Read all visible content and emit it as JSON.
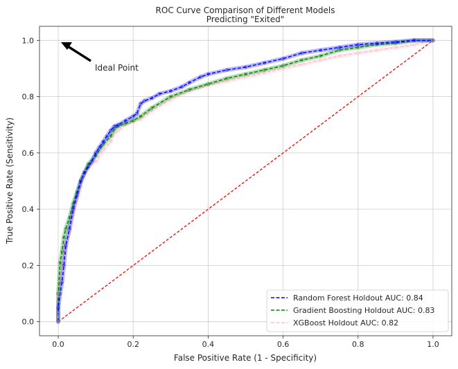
{
  "chart_data": {
    "type": "line",
    "title": "ROC Curve Comparison of Different Models",
    "subtitle": "Predicting \"Exited\"",
    "xlabel": "False Positive Rate (1 - Specificity)",
    "ylabel": "True Positive Rate (Sensitivity)",
    "xlim": [
      -0.05,
      1.05
    ],
    "ylim": [
      -0.05,
      1.05
    ],
    "xticks": [
      0.0,
      0.2,
      0.4,
      0.6,
      0.8,
      1.0
    ],
    "yticks": [
      0.0,
      0.2,
      0.4,
      0.6,
      0.8,
      1.0
    ],
    "xtick_labels": [
      "0.0",
      "0.2",
      "0.4",
      "0.6",
      "0.8",
      "1.0"
    ],
    "ytick_labels": [
      "0.0",
      "0.2",
      "0.4",
      "0.6",
      "0.8",
      "1.0"
    ],
    "grid": true,
    "legend_position": "lower-right",
    "annotation": {
      "text": "Ideal Point",
      "point": [
        0.0,
        1.0
      ],
      "text_at": [
        0.1,
        0.9
      ]
    },
    "baseline": {
      "x": [
        0,
        1
      ],
      "y": [
        0,
        1
      ],
      "color": "#ff0000"
    },
    "series": [
      {
        "name": "Random Forest Holdout AUC: 0.84",
        "color": "#0000ff",
        "x": [
          0.0,
          0.0,
          0.005,
          0.01,
          0.015,
          0.02,
          0.03,
          0.04,
          0.05,
          0.06,
          0.07,
          0.08,
          0.09,
          0.1,
          0.11,
          0.12,
          0.13,
          0.14,
          0.15,
          0.16,
          0.18,
          0.2,
          0.21,
          0.22,
          0.23,
          0.25,
          0.27,
          0.3,
          0.33,
          0.35,
          0.38,
          0.4,
          0.45,
          0.5,
          0.55,
          0.6,
          0.65,
          0.7,
          0.75,
          0.8,
          0.85,
          0.9,
          0.95,
          1.0
        ],
        "y": [
          0.0,
          0.05,
          0.1,
          0.14,
          0.2,
          0.27,
          0.33,
          0.4,
          0.45,
          0.5,
          0.53,
          0.55,
          0.57,
          0.6,
          0.62,
          0.64,
          0.66,
          0.68,
          0.695,
          0.7,
          0.715,
          0.73,
          0.74,
          0.775,
          0.785,
          0.795,
          0.81,
          0.82,
          0.835,
          0.85,
          0.87,
          0.88,
          0.895,
          0.905,
          0.92,
          0.935,
          0.955,
          0.965,
          0.975,
          0.985,
          0.99,
          0.995,
          1.0,
          1.0
        ]
      },
      {
        "name": "Gradient Boosting Holdout AUC: 0.83",
        "color": "#008000",
        "x": [
          0.0,
          0.0,
          0.005,
          0.01,
          0.015,
          0.02,
          0.03,
          0.04,
          0.05,
          0.06,
          0.07,
          0.08,
          0.1,
          0.12,
          0.14,
          0.15,
          0.16,
          0.18,
          0.2,
          0.22,
          0.25,
          0.3,
          0.35,
          0.4,
          0.45,
          0.5,
          0.55,
          0.6,
          0.65,
          0.7,
          0.75,
          0.8,
          0.85,
          0.9,
          0.95,
          1.0
        ],
        "y": [
          0.0,
          0.1,
          0.21,
          0.25,
          0.3,
          0.33,
          0.37,
          0.42,
          0.46,
          0.5,
          0.53,
          0.56,
          0.59,
          0.63,
          0.66,
          0.685,
          0.695,
          0.705,
          0.715,
          0.73,
          0.76,
          0.8,
          0.825,
          0.845,
          0.865,
          0.88,
          0.895,
          0.91,
          0.93,
          0.945,
          0.965,
          0.975,
          0.985,
          0.99,
          1.0,
          1.0
        ]
      },
      {
        "name": "XGBoost Holdout AUC: 0.82",
        "color": "#ffc0cb",
        "x": [
          0.0,
          0.0,
          0.005,
          0.01,
          0.02,
          0.03,
          0.04,
          0.05,
          0.06,
          0.07,
          0.08,
          0.1,
          0.12,
          0.14,
          0.15,
          0.16,
          0.18,
          0.2,
          0.22,
          0.25,
          0.3,
          0.35,
          0.4,
          0.45,
          0.5,
          0.55,
          0.6,
          0.65,
          0.7,
          0.75,
          0.8,
          0.85,
          0.9,
          0.95,
          1.0
        ],
        "y": [
          0.0,
          0.08,
          0.15,
          0.2,
          0.27,
          0.33,
          0.38,
          0.43,
          0.48,
          0.52,
          0.55,
          0.57,
          0.61,
          0.64,
          0.67,
          0.68,
          0.7,
          0.71,
          0.72,
          0.75,
          0.79,
          0.82,
          0.84,
          0.855,
          0.87,
          0.885,
          0.9,
          0.915,
          0.93,
          0.945,
          0.955,
          0.965,
          0.975,
          0.985,
          1.0
        ]
      }
    ]
  }
}
